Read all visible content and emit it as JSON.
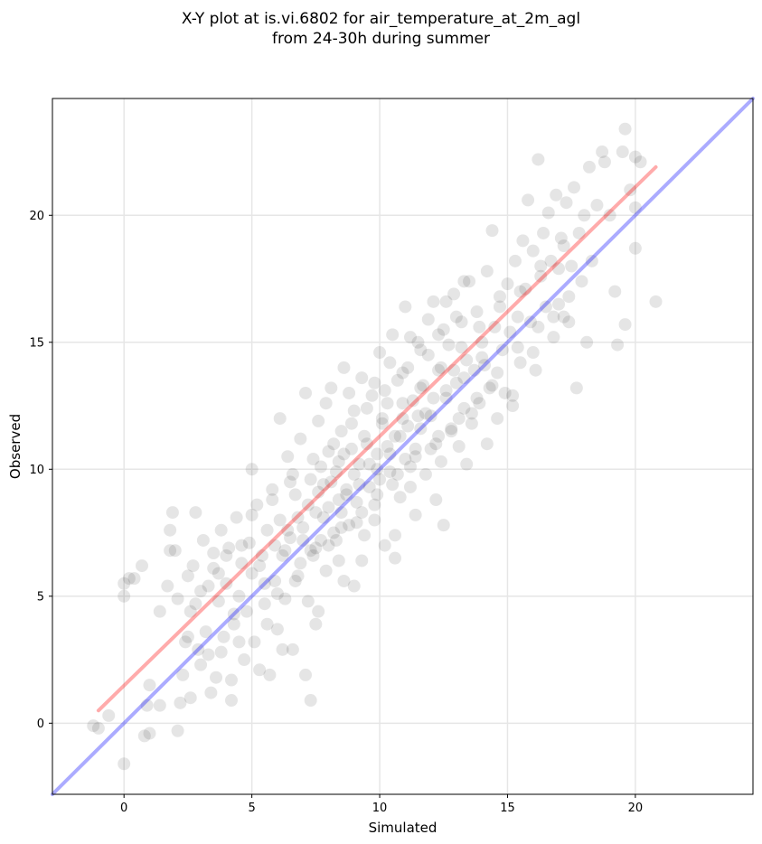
{
  "title_line1": "X-Y plot at is.vi.6802 for air_temperature_at_2m_agl",
  "title_line2": "from 24-30h during summer",
  "chart_data": {
    "type": "scatter",
    "title": "X-Y plot at is.vi.6802 for air_temperature_at_2m_agl from 24-30h during summer",
    "xlabel": "Simulated",
    "ylabel": "Observed",
    "xlim": [
      -2.8,
      24.6
    ],
    "ylim": [
      -2.8,
      24.6
    ],
    "xticks": [
      0,
      5,
      10,
      15,
      20
    ],
    "yticks": [
      0,
      5,
      10,
      15,
      20
    ],
    "grid": true,
    "point_color": "#000000",
    "point_alpha": 0.1,
    "points": [
      [
        -1.2,
        -0.1
      ],
      [
        -1.0,
        -0.2
      ],
      [
        -0.6,
        0.3
      ],
      [
        0.0,
        -1.6
      ],
      [
        0.0,
        5.0
      ],
      [
        0.0,
        5.5
      ],
      [
        0.2,
        5.7
      ],
      [
        0.4,
        5.7
      ],
      [
        0.7,
        6.2
      ],
      [
        0.8,
        -0.5
      ],
      [
        0.9,
        0.7
      ],
      [
        1.0,
        -0.4
      ],
      [
        1.0,
        1.5
      ],
      [
        1.4,
        0.7
      ],
      [
        1.4,
        4.4
      ],
      [
        1.7,
        5.4
      ],
      [
        1.8,
        6.8
      ],
      [
        1.8,
        7.6
      ],
      [
        1.9,
        8.3
      ],
      [
        2.0,
        6.8
      ],
      [
        2.1,
        4.9
      ],
      [
        2.1,
        -0.3
      ],
      [
        2.2,
        0.8
      ],
      [
        2.3,
        1.9
      ],
      [
        2.4,
        3.2
      ],
      [
        2.5,
        5.8
      ],
      [
        2.6,
        1.0
      ],
      [
        2.6,
        4.4
      ],
      [
        2.7,
        6.2
      ],
      [
        2.8,
        8.3
      ],
      [
        2.9,
        2.9
      ],
      [
        3.0,
        5.2
      ],
      [
        3.1,
        7.2
      ],
      [
        3.2,
        3.6
      ],
      [
        3.3,
        2.7
      ],
      [
        3.4,
        1.2
      ],
      [
        3.5,
        6.7
      ],
      [
        3.6,
        1.8
      ],
      [
        3.7,
        4.8
      ],
      [
        3.7,
        5.9
      ],
      [
        3.8,
        7.6
      ],
      [
        3.9,
        3.4
      ],
      [
        4.0,
        5.5
      ],
      [
        4.1,
        6.9
      ],
      [
        4.2,
        1.7
      ],
      [
        4.2,
        0.9
      ],
      [
        4.3,
        3.9
      ],
      [
        4.4,
        8.1
      ],
      [
        4.5,
        5.0
      ],
      [
        4.6,
        6.3
      ],
      [
        4.7,
        2.5
      ],
      [
        4.8,
        4.4
      ],
      [
        4.9,
        7.1
      ],
      [
        5.0,
        5.9
      ],
      [
        5.0,
        10.0
      ],
      [
        5.1,
        3.2
      ],
      [
        5.2,
        8.6
      ],
      [
        5.3,
        2.1
      ],
      [
        5.4,
        6.6
      ],
      [
        5.5,
        4.7
      ],
      [
        5.6,
        7.6
      ],
      [
        5.7,
        1.9
      ],
      [
        5.8,
        9.2
      ],
      [
        5.9,
        5.6
      ],
      [
        6.0,
        3.7
      ],
      [
        6.1,
        8.0
      ],
      [
        6.1,
        12.0
      ],
      [
        6.2,
        6.6
      ],
      [
        6.3,
        4.9
      ],
      [
        6.4,
        10.5
      ],
      [
        6.5,
        7.3
      ],
      [
        6.6,
        2.9
      ],
      [
        6.7,
        9.0
      ],
      [
        6.8,
        5.8
      ],
      [
        6.9,
        11.2
      ],
      [
        7.0,
        7.7
      ],
      [
        7.1,
        1.9
      ],
      [
        7.1,
        13.0
      ],
      [
        7.2,
        4.8
      ],
      [
        7.3,
        9.6
      ],
      [
        7.3,
        0.9
      ],
      [
        7.4,
        6.6
      ],
      [
        7.5,
        8.3
      ],
      [
        7.5,
        3.9
      ],
      [
        7.6,
        11.9
      ],
      [
        7.7,
        7.2
      ],
      [
        7.8,
        9.4
      ],
      [
        7.9,
        6.0
      ],
      [
        8.0,
        10.7
      ],
      [
        8.0,
        8.5
      ],
      [
        8.1,
        13.2
      ],
      [
        8.2,
        7.5
      ],
      [
        8.3,
        9.9
      ],
      [
        8.4,
        6.4
      ],
      [
        8.5,
        11.5
      ],
      [
        8.5,
        8.3
      ],
      [
        8.6,
        14.0
      ],
      [
        8.7,
        9.2
      ],
      [
        8.8,
        7.8
      ],
      [
        8.9,
        10.8
      ],
      [
        9.0,
        5.4
      ],
      [
        9.0,
        12.3
      ],
      [
        9.1,
        8.7
      ],
      [
        9.2,
        10.2
      ],
      [
        9.3,
        13.6
      ],
      [
        9.4,
        7.4
      ],
      [
        9.5,
        11.0
      ],
      [
        9.6,
        9.3
      ],
      [
        9.7,
        12.9
      ],
      [
        9.8,
        8.0
      ],
      [
        9.9,
        10.6
      ],
      [
        10.0,
        14.6
      ],
      [
        10.0,
        9.6
      ],
      [
        10.1,
        11.8
      ],
      [
        10.2,
        7.0
      ],
      [
        10.3,
        12.6
      ],
      [
        10.4,
        9.9
      ],
      [
        10.5,
        15.3
      ],
      [
        10.6,
        11.3
      ],
      [
        10.6,
        6.5
      ],
      [
        10.7,
        13.5
      ],
      [
        10.8,
        8.9
      ],
      [
        10.9,
        12.0
      ],
      [
        11.0,
        16.4
      ],
      [
        11.0,
        10.4
      ],
      [
        11.1,
        14.0
      ],
      [
        11.2,
        9.3
      ],
      [
        11.3,
        12.7
      ],
      [
        11.4,
        10.8
      ],
      [
        11.5,
        15.0
      ],
      [
        11.6,
        11.6
      ],
      [
        11.7,
        13.3
      ],
      [
        11.8,
        9.8
      ],
      [
        11.9,
        14.5
      ],
      [
        12.0,
        12.1
      ],
      [
        12.1,
        16.6
      ],
      [
        12.2,
        11.0
      ],
      [
        12.3,
        13.9
      ],
      [
        12.4,
        10.3
      ],
      [
        12.5,
        15.5
      ],
      [
        12.5,
        7.8
      ],
      [
        12.6,
        12.8
      ],
      [
        12.7,
        14.9
      ],
      [
        12.8,
        11.5
      ],
      [
        12.9,
        16.9
      ],
      [
        13.0,
        13.4
      ],
      [
        13.1,
        10.9
      ],
      [
        13.2,
        15.8
      ],
      [
        13.3,
        12.4
      ],
      [
        13.4,
        14.3
      ],
      [
        13.5,
        17.4
      ],
      [
        13.6,
        11.8
      ],
      [
        13.7,
        13.9
      ],
      [
        13.8,
        16.2
      ],
      [
        13.9,
        12.6
      ],
      [
        14.0,
        15.0
      ],
      [
        14.1,
        14.1
      ],
      [
        14.2,
        17.8
      ],
      [
        14.3,
        13.2
      ],
      [
        14.4,
        19.4
      ],
      [
        14.5,
        15.6
      ],
      [
        14.6,
        12.0
      ],
      [
        14.7,
        16.8
      ],
      [
        14.8,
        14.7
      ],
      [
        14.9,
        13.0
      ],
      [
        15.0,
        17.3
      ],
      [
        15.1,
        15.4
      ],
      [
        15.2,
        12.5
      ],
      [
        15.3,
        18.2
      ],
      [
        15.4,
        16.0
      ],
      [
        15.5,
        14.2
      ],
      [
        15.6,
        19.0
      ],
      [
        15.7,
        17.1
      ],
      [
        15.8,
        20.6
      ],
      [
        15.9,
        15.8
      ],
      [
        16.0,
        18.6
      ],
      [
        16.1,
        13.9
      ],
      [
        16.2,
        22.2
      ],
      [
        16.3,
        17.6
      ],
      [
        16.4,
        19.3
      ],
      [
        16.5,
        16.4
      ],
      [
        16.6,
        20.1
      ],
      [
        16.7,
        18.2
      ],
      [
        16.8,
        15.2
      ],
      [
        16.9,
        20.8
      ],
      [
        17.0,
        17.9
      ],
      [
        17.1,
        19.1
      ],
      [
        17.2,
        16.0
      ],
      [
        17.3,
        20.5
      ],
      [
        17.4,
        15.8
      ],
      [
        17.5,
        18.0
      ],
      [
        17.6,
        21.1
      ],
      [
        17.7,
        13.2
      ],
      [
        17.8,
        19.3
      ],
      [
        17.9,
        17.4
      ],
      [
        18.0,
        20.0
      ],
      [
        18.1,
        15.0
      ],
      [
        18.2,
        21.9
      ],
      [
        18.3,
        18.2
      ],
      [
        18.5,
        20.4
      ],
      [
        18.7,
        22.5
      ],
      [
        18.8,
        22.1
      ],
      [
        19.0,
        20.0
      ],
      [
        19.2,
        17.0
      ],
      [
        19.3,
        14.9
      ],
      [
        19.5,
        22.5
      ],
      [
        19.6,
        23.4
      ],
      [
        19.6,
        15.7
      ],
      [
        19.8,
        21.0
      ],
      [
        20.0,
        18.7
      ],
      [
        20.0,
        20.3
      ],
      [
        20.0,
        22.3
      ],
      [
        20.2,
        22.1
      ],
      [
        20.8,
        16.6
      ],
      [
        4.3,
        4.3
      ],
      [
        5.5,
        5.5
      ],
      [
        6.3,
        6.8
      ],
      [
        7.0,
        7.2
      ],
      [
        7.8,
        8.1
      ],
      [
        8.4,
        8.8
      ],
      [
        9.0,
        9.8
      ],
      [
        9.6,
        10.2
      ],
      [
        10.3,
        10.9
      ],
      [
        11.1,
        11.7
      ],
      [
        11.8,
        12.2
      ],
      [
        12.6,
        13.1
      ],
      [
        13.3,
        13.6
      ],
      [
        14.0,
        14.4
      ],
      [
        6.6,
        9.8
      ],
      [
        7.4,
        10.4
      ],
      [
        8.2,
        11.0
      ],
      [
        8.9,
        11.8
      ],
      [
        9.5,
        12.4
      ],
      [
        10.2,
        13.1
      ],
      [
        10.9,
        13.8
      ],
      [
        11.6,
        14.7
      ],
      [
        12.3,
        15.3
      ],
      [
        13.0,
        16.0
      ],
      [
        6.0,
        5.1
      ],
      [
        6.7,
        5.6
      ],
      [
        7.5,
        6.9
      ],
      [
        8.3,
        7.2
      ],
      [
        9.1,
        7.9
      ],
      [
        9.8,
        8.6
      ],
      [
        10.5,
        9.4
      ],
      [
        11.2,
        10.1
      ],
      [
        12.0,
        10.8
      ],
      [
        12.8,
        11.6
      ],
      [
        13.6,
        12.2
      ],
      [
        14.4,
        13.3
      ],
      [
        5.0,
        8.2
      ],
      [
        5.8,
        8.8
      ],
      [
        6.5,
        9.5
      ],
      [
        3.5,
        6.1
      ],
      [
        4.0,
        6.6
      ],
      [
        4.6,
        7.0
      ],
      [
        2.8,
        4.7
      ],
      [
        3.3,
        5.4
      ],
      [
        2.5,
        3.4
      ],
      [
        3.0,
        2.3
      ],
      [
        3.8,
        2.8
      ],
      [
        4.5,
        3.2
      ],
      [
        5.6,
        3.9
      ],
      [
        6.2,
        2.9
      ],
      [
        7.6,
        4.4
      ],
      [
        8.6,
        5.6
      ],
      [
        9.3,
        6.4
      ],
      [
        10.6,
        7.4
      ],
      [
        11.4,
        8.2
      ],
      [
        12.2,
        8.8
      ],
      [
        13.4,
        10.2
      ],
      [
        14.2,
        11.0
      ],
      [
        15.2,
        12.9
      ],
      [
        16.0,
        14.6
      ],
      [
        16.8,
        16.0
      ],
      [
        17.4,
        16.8
      ],
      [
        8.8,
        13.0
      ],
      [
        9.8,
        13.4
      ],
      [
        10.4,
        14.2
      ],
      [
        11.2,
        15.2
      ],
      [
        11.9,
        15.9
      ],
      [
        12.6,
        16.6
      ],
      [
        13.3,
        17.4
      ],
      [
        7.9,
        12.6
      ],
      [
        8.4,
        10.3
      ],
      [
        8.7,
        9.0
      ],
      [
        9.2,
        9.4
      ],
      [
        9.9,
        10.0
      ],
      [
        10.4,
        10.6
      ],
      [
        10.8,
        11.3
      ],
      [
        11.5,
        12.1
      ],
      [
        12.1,
        12.8
      ],
      [
        12.9,
        13.9
      ],
      [
        7.2,
        8.6
      ],
      [
        7.6,
        9.1
      ],
      [
        8.1,
        9.5
      ],
      [
        6.9,
        6.3
      ],
      [
        7.3,
        6.8
      ],
      [
        8.0,
        7.0
      ],
      [
        8.5,
        7.7
      ],
      [
        9.3,
        8.3
      ],
      [
        9.9,
        9.0
      ],
      [
        10.7,
        9.8
      ],
      [
        11.4,
        10.5
      ],
      [
        12.3,
        11.3
      ],
      [
        13.1,
        12.0
      ],
      [
        13.8,
        12.8
      ],
      [
        14.6,
        13.8
      ],
      [
        15.4,
        14.8
      ],
      [
        16.2,
        15.6
      ],
      [
        17.0,
        16.5
      ],
      [
        5.3,
        6.2
      ],
      [
        5.9,
        7.0
      ],
      [
        6.4,
        7.6
      ],
      [
        6.8,
        8.1
      ],
      [
        7.7,
        10.1
      ],
      [
        8.6,
        10.6
      ],
      [
        9.4,
        11.3
      ],
      [
        10.1,
        12.0
      ],
      [
        10.9,
        12.6
      ],
      [
        11.6,
        13.2
      ],
      [
        12.4,
        14.0
      ],
      [
        13.2,
        14.8
      ],
      [
        13.9,
        15.6
      ],
      [
        14.7,
        16.4
      ],
      [
        15.5,
        17.0
      ],
      [
        16.3,
        18.0
      ],
      [
        17.2,
        18.8
      ]
    ],
    "lines": [
      {
        "color": "#ff0000",
        "alpha": 0.33,
        "from": [
          -1.0,
          0.5
        ],
        "to": [
          20.8,
          21.9
        ]
      },
      {
        "color": "#0000ff",
        "alpha": 0.33,
        "from": [
          -2.8,
          -2.8
        ],
        "to": [
          24.6,
          24.6
        ]
      }
    ]
  }
}
